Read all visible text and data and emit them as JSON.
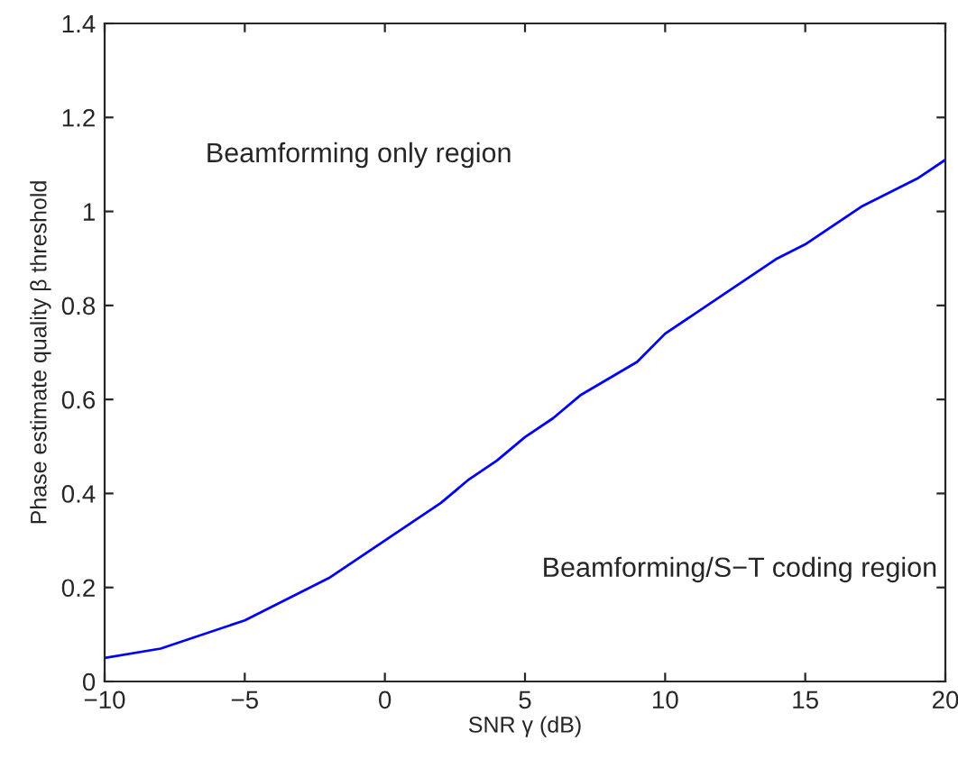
{
  "chart_data": {
    "type": "line",
    "xlabel": "SNR γ (dB)",
    "ylabel": "Phase estimate quality β threshold",
    "x": [
      -10,
      -8,
      -5,
      -2,
      0,
      2,
      3,
      4,
      5,
      6,
      7,
      9,
      10,
      12,
      14,
      15,
      17,
      19,
      20
    ],
    "series": [
      {
        "color": "#0000ff",
        "values": [
          0.05,
          0.07,
          0.13,
          0.22,
          0.3,
          0.38,
          0.43,
          0.47,
          0.52,
          0.56,
          0.61,
          0.68,
          0.74,
          0.82,
          0.9,
          0.93,
          1.01,
          1.07,
          1.11
        ]
      }
    ],
    "xlim": [
      -10,
      20
    ],
    "xticks": [
      -10,
      -5,
      0,
      5,
      10,
      15,
      20
    ],
    "ylim": [
      0,
      1.4
    ],
    "yticks": [
      0,
      0.2,
      0.4,
      0.6,
      0.8,
      1,
      1.2,
      1.4
    ],
    "annotations": [
      "Beamforming only region",
      "Beamforming/S−T coding region"
    ],
    "grid": false,
    "legend": false,
    "marker": "none",
    "line_style": "solid"
  }
}
